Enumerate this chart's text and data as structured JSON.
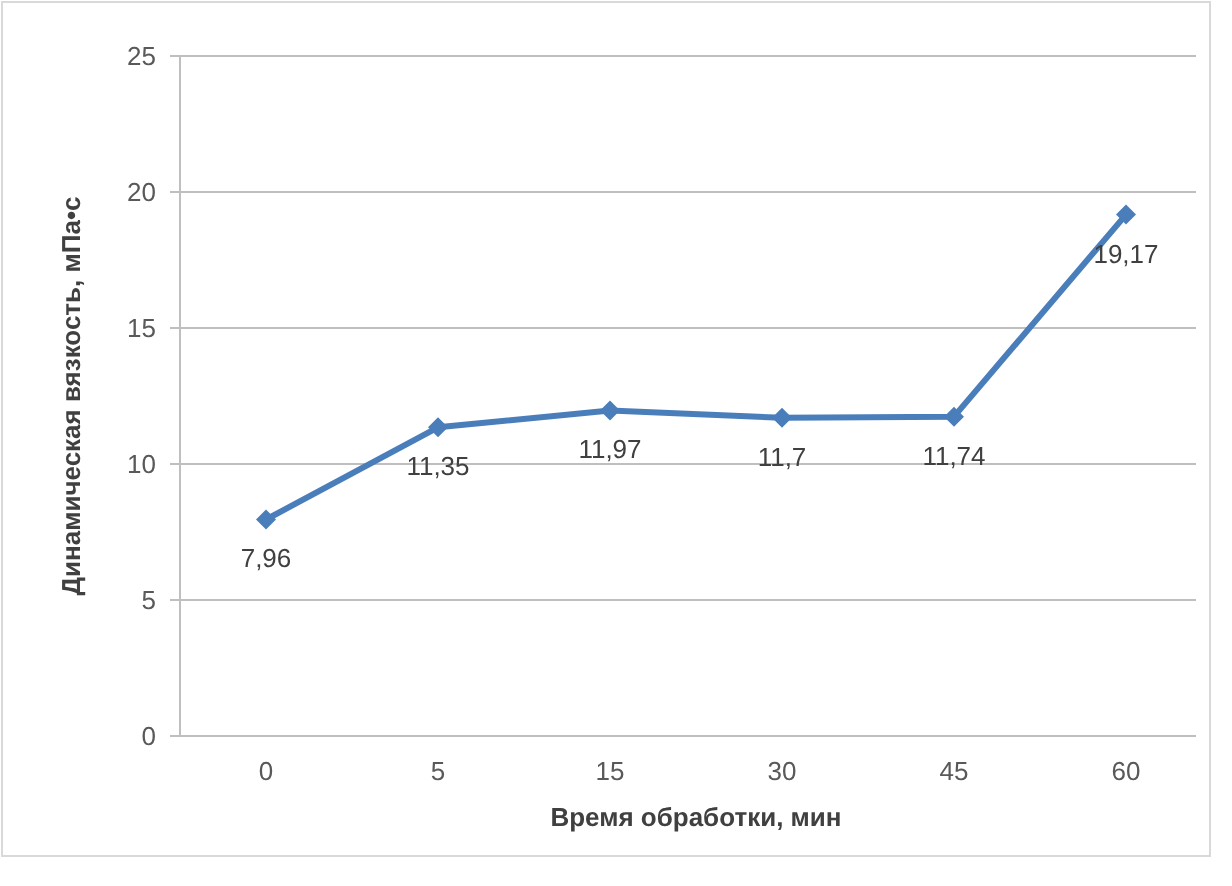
{
  "chart_data": {
    "type": "line",
    "xlabel": "Время обработки, мин",
    "ylabel": "Динамическая вязкость, мПа•с",
    "categories": [
      "0",
      "5",
      "15",
      "30",
      "45",
      "60"
    ],
    "series": [
      {
        "color": "#4a7ebb",
        "values": [
          7.96,
          11.35,
          11.97,
          11.7,
          11.74,
          19.17
        ],
        "value_labels": [
          "7,96",
          "11,35",
          "11,97",
          "11,7",
          "11,74",
          "19,17"
        ]
      }
    ],
    "ylim": [
      0,
      25
    ],
    "yticks": [
      0,
      5,
      10,
      15,
      20,
      25
    ],
    "grid": "y",
    "marker": "diamond",
    "line_style": "solid"
  }
}
